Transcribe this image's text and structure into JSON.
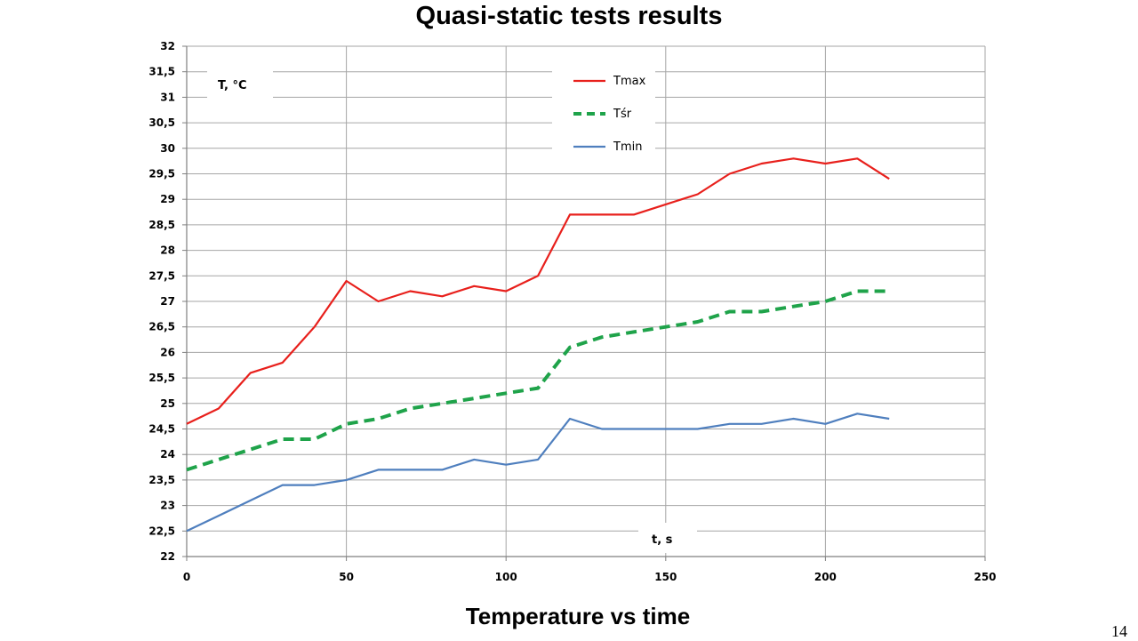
{
  "slide": {
    "title": "Quasi-static tests results",
    "caption": "Temperature vs time",
    "page_number": "14"
  },
  "chart_data": {
    "type": "line",
    "xlabel": "t, s",
    "ylabel": "T, °C",
    "xlim": [
      0,
      250
    ],
    "ylim": [
      22,
      32
    ],
    "x_ticks": [
      0,
      50,
      100,
      150,
      200,
      250
    ],
    "y_ticks": [
      22,
      22.5,
      23,
      23.5,
      24,
      24.5,
      25,
      25.5,
      26,
      26.5,
      27,
      27.5,
      28,
      28.5,
      29,
      29.5,
      30,
      30.5,
      31,
      31.5,
      32
    ],
    "decimal_separator": ",",
    "grid": true,
    "legend_position": "top-center",
    "x": [
      0,
      10,
      20,
      30,
      40,
      50,
      60,
      70,
      80,
      90,
      100,
      110,
      120,
      130,
      140,
      150,
      160,
      170,
      180,
      190,
      200,
      210,
      220
    ],
    "series": [
      {
        "name": "Tmax",
        "color": "#e8201c",
        "style": "solid",
        "values": [
          24.6,
          24.9,
          25.6,
          25.8,
          26.5,
          27.4,
          27.0,
          27.2,
          27.1,
          27.3,
          27.2,
          27.5,
          28.7,
          28.7,
          28.7,
          28.9,
          29.1,
          29.5,
          29.7,
          29.8,
          29.7,
          29.8,
          29.4
        ]
      },
      {
        "name": "Tśr",
        "color": "#1fa34a",
        "style": "dashed",
        "values": [
          23.7,
          23.9,
          24.1,
          24.3,
          24.3,
          24.6,
          24.7,
          24.9,
          25.0,
          25.1,
          25.2,
          25.3,
          26.1,
          26.3,
          26.4,
          26.5,
          26.6,
          26.8,
          26.8,
          26.9,
          27.0,
          27.2,
          27.2
        ]
      },
      {
        "name": "Tmin",
        "color": "#4f7fbe",
        "style": "solid",
        "values": [
          22.5,
          22.8,
          23.1,
          23.4,
          23.4,
          23.5,
          23.7,
          23.7,
          23.7,
          23.9,
          23.8,
          23.9,
          24.7,
          24.5,
          24.5,
          24.5,
          24.5,
          24.6,
          24.6,
          24.7,
          24.6,
          24.8,
          24.7
        ]
      }
    ]
  }
}
